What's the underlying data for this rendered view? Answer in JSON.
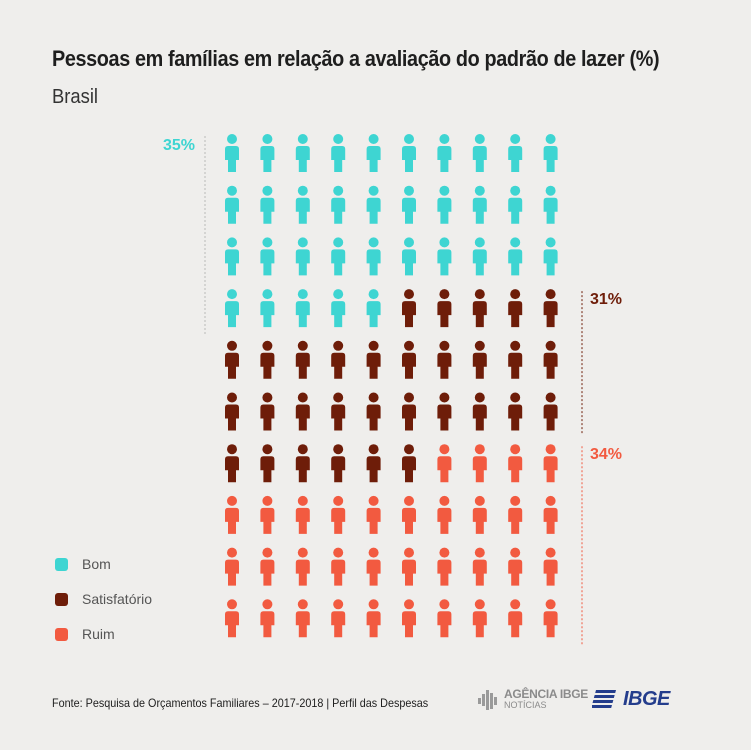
{
  "header": {
    "title": "Pessoas em famílias em relação a avaliação do padrão de lazer (%)",
    "subtitle": "Brasil"
  },
  "colors": {
    "bom": "#3ed5d2",
    "satisfatorio": "#6e1d09",
    "ruim": "#f25a40",
    "background": "#efeeec"
  },
  "chart_data": {
    "type": "pictogram",
    "categories": [
      "Bom",
      "Satisfatório",
      "Ruim"
    ],
    "values": [
      35,
      31,
      34
    ],
    "unit": "%",
    "total_icons": 100,
    "icon_grid": {
      "rows": 10,
      "cols": 10
    },
    "data_labels": [
      "35%",
      "31%",
      "34%"
    ]
  },
  "legend": [
    {
      "label": "Bom",
      "color": "#3ed5d2"
    },
    {
      "label": "Satisfatório",
      "color": "#6e1d09"
    },
    {
      "label": "Ruim",
      "color": "#f25a40"
    }
  ],
  "footer": {
    "source": "Fonte: Pesquisa de Orçamentos Familiares – 2017-2018  |  Perfil das Despesas",
    "agencia_line1": "AGÊNCIA IBGE",
    "agencia_line2": "NOTÍCIAS",
    "ibge_logo": "IBGE"
  }
}
